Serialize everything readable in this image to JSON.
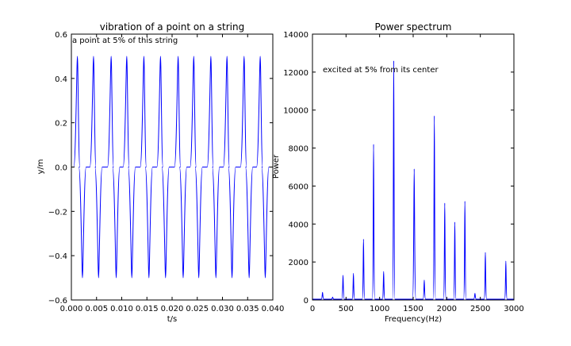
{
  "chart_data": [
    {
      "type": "line",
      "title": "vibration of a point on a string",
      "xlabel": "t/s",
      "ylabel": "y/m",
      "xlim": [
        0.0,
        0.04
      ],
      "ylim": [
        -0.6,
        0.6
      ],
      "xticks": [
        "0.000",
        "0.005",
        "0.010",
        "0.015",
        "0.020",
        "0.025",
        "0.030",
        "0.035",
        "0.040"
      ],
      "yticks": [
        "0.6",
        "0.4",
        "0.2",
        "0.0",
        "−0.2",
        "−0.4",
        "−0.6"
      ],
      "annotation": "a point at 5% of this string",
      "color": "#0000ff",
      "grid": false,
      "pulse_amplitude": 0.5,
      "positive_pulse_t": [
        0.0017,
        0.0049,
        0.0084,
        0.0115,
        0.0149,
        0.0182,
        0.0217,
        0.0248,
        0.0282,
        0.0314,
        0.0348,
        0.038
      ],
      "negative_pulse_t": [
        0.0017,
        0.0049,
        0.0084,
        0.0115,
        0.0149,
        0.0182,
        0.0217,
        0.0248,
        0.0282,
        0.0314,
        0.0348,
        0.038
      ]
    },
    {
      "type": "line",
      "title": "Power spectrum",
      "xlabel": "Frequency(Hz)",
      "ylabel": "Power",
      "xlim": [
        0,
        3000
      ],
      "ylim": [
        0,
        14000
      ],
      "xticks": [
        "0",
        "500",
        "1000",
        "1500",
        "2000",
        "2500",
        "3000"
      ],
      "yticks": [
        "14000",
        "12000",
        "10000",
        "8000",
        "6000",
        "4000",
        "2000",
        "0"
      ],
      "annotation": "excited at 5% from its center",
      "color": "#0000ff",
      "grid": false,
      "peaks": [
        {
          "f": 150,
          "power": 400
        },
        {
          "f": 300,
          "power": 150
        },
        {
          "f": 455,
          "power": 1300
        },
        {
          "f": 610,
          "power": 1400
        },
        {
          "f": 760,
          "power": 3200
        },
        {
          "f": 910,
          "power": 8200
        },
        {
          "f": 1060,
          "power": 1500
        },
        {
          "f": 1210,
          "power": 12600
        },
        {
          "f": 1515,
          "power": 6900
        },
        {
          "f": 1665,
          "power": 1050
        },
        {
          "f": 1815,
          "power": 9700
        },
        {
          "f": 1970,
          "power": 5100
        },
        {
          "f": 2120,
          "power": 4100
        },
        {
          "f": 2270,
          "power": 5200
        },
        {
          "f": 2420,
          "power": 350
        },
        {
          "f": 2575,
          "power": 2500
        },
        {
          "f": 2880,
          "power": 2050
        }
      ]
    }
  ]
}
